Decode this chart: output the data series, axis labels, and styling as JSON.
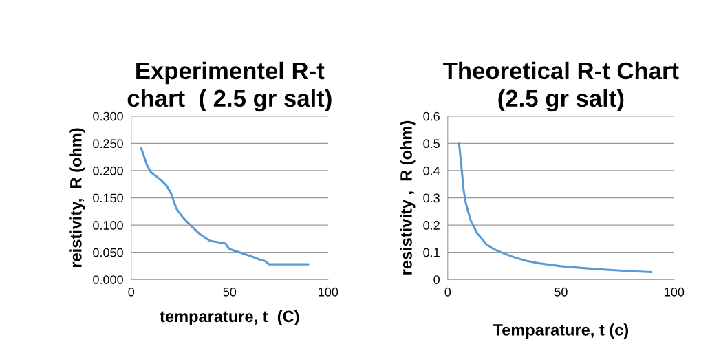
{
  "chart_data": [
    {
      "type": "line",
      "title": "Experimentel R-t\nchart  ( 2.5 gr salt)",
      "xlabel": "temparature, t  (C)",
      "ylabel": "reistivity,  R (ohm)",
      "series": [
        {
          "color": "#5b9bd5",
          "x": [
            5,
            8,
            10,
            15,
            18,
            20,
            23,
            26,
            30,
            35,
            40,
            45,
            48,
            49,
            50,
            55,
            60,
            65,
            68,
            70,
            80,
            90
          ],
          "values": [
            0.242,
            0.21,
            0.197,
            0.183,
            0.172,
            0.16,
            0.13,
            0.115,
            0.1,
            0.083,
            0.071,
            0.068,
            0.066,
            0.06,
            0.056,
            0.05,
            0.044,
            0.037,
            0.034,
            0.028,
            0.028,
            0.028
          ]
        }
      ],
      "xlim": [
        0,
        100
      ],
      "xticks": [
        0,
        50,
        100
      ],
      "ylim": [
        0,
        0.3
      ],
      "yticks": [
        {
          "value": 0,
          "label": "0.000"
        },
        {
          "value": 0.05,
          "label": "0.050"
        },
        {
          "value": 0.1,
          "label": "0.100"
        },
        {
          "value": 0.15,
          "label": "0.150"
        },
        {
          "value": 0.2,
          "label": "0.200"
        },
        {
          "value": 0.25,
          "label": "0.250"
        },
        {
          "value": 0.3,
          "label": "0.300"
        }
      ],
      "grid": "y",
      "marker": "none",
      "line_style": "solid"
    },
    {
      "type": "line",
      "title": "Theoretical R-t Chart\n(2.5 gr salt)",
      "xlabel": "Temparature, t (c)",
      "ylabel": "resistivity ,  R (ohm)",
      "series": [
        {
          "color": "#5b9bd5",
          "x": [
            5,
            6,
            7,
            8,
            10,
            13,
            17,
            20,
            25,
            30,
            35,
            40,
            50,
            60,
            70,
            80,
            90
          ],
          "values": [
            0.5,
            0.42,
            0.33,
            0.28,
            0.22,
            0.17,
            0.13,
            0.113,
            0.095,
            0.08,
            0.068,
            0.06,
            0.049,
            0.042,
            0.036,
            0.031,
            0.027
          ]
        }
      ],
      "xlim": [
        0,
        100
      ],
      "xticks": [
        0,
        50,
        100
      ],
      "ylim": [
        0,
        0.6
      ],
      "yticks": [
        0,
        0.1,
        0.2,
        0.3,
        0.4,
        0.5,
        0.6
      ],
      "grid": "y",
      "marker": "none",
      "line_style": "solid"
    }
  ]
}
